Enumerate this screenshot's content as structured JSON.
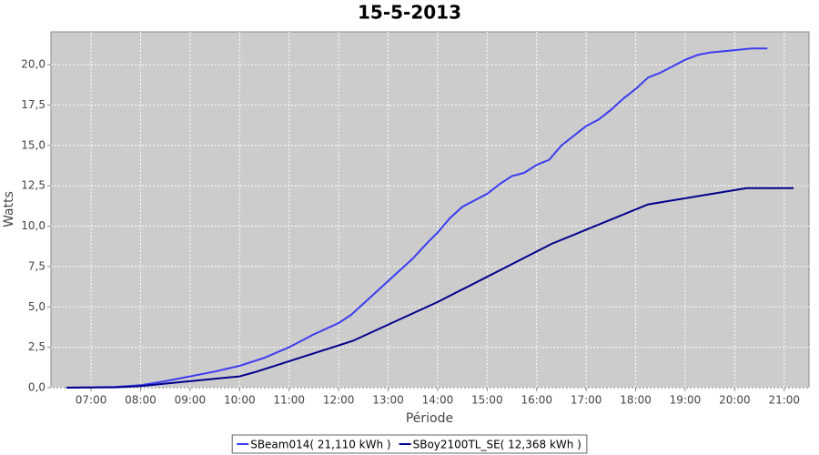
{
  "chart_data": {
    "type": "line",
    "title": "15-5-2013",
    "x_label": "Période",
    "y_label": "Watts",
    "xlim": [
      6.19,
      21.5
    ],
    "ylim": [
      0,
      22.03
    ],
    "xticks": [
      {
        "value": 7,
        "label": "07:00"
      },
      {
        "value": 8,
        "label": "08:00"
      },
      {
        "value": 9,
        "label": "09:00"
      },
      {
        "value": 10,
        "label": "10:00"
      },
      {
        "value": 11,
        "label": "11:00"
      },
      {
        "value": 12,
        "label": "12:00"
      },
      {
        "value": 13,
        "label": "13:00"
      },
      {
        "value": 14,
        "label": "14:00"
      },
      {
        "value": 15,
        "label": "15:00"
      },
      {
        "value": 16,
        "label": "16:00"
      },
      {
        "value": 17,
        "label": "17:00"
      },
      {
        "value": 18,
        "label": "18:00"
      },
      {
        "value": 19,
        "label": "19:00"
      },
      {
        "value": 20,
        "label": "20:00"
      },
      {
        "value": 21,
        "label": "21:00"
      }
    ],
    "yticks": [
      {
        "value": 0,
        "label": "0,0"
      },
      {
        "value": 2.5,
        "label": "2,5"
      },
      {
        "value": 5,
        "label": "5,0"
      },
      {
        "value": 7.5,
        "label": "7,5"
      },
      {
        "value": 10,
        "label": "10,0"
      },
      {
        "value": 12.5,
        "label": "12,5"
      },
      {
        "value": 15,
        "label": "15,0"
      },
      {
        "value": 17.5,
        "label": "17,5"
      },
      {
        "value": 20,
        "label": "20,0"
      }
    ],
    "grid": true,
    "legend": "bottom",
    "series": [
      {
        "name": "SBeam014( 21,110 kWh )",
        "color": "#3c3cf0",
        "x": [
          6.5,
          7.0,
          7.5,
          8.0,
          8.5,
          9.0,
          9.5,
          10.0,
          10.5,
          11.0,
          11.5,
          12.0,
          12.25,
          12.5,
          13.0,
          13.5,
          13.8,
          14.0,
          14.25,
          14.5,
          14.75,
          15.0,
          15.25,
          15.5,
          15.75,
          16.0,
          16.25,
          16.5,
          16.75,
          17.0,
          17.25,
          17.5,
          17.75,
          18.0,
          18.25,
          18.5,
          18.75,
          19.0,
          19.25,
          19.5,
          20.0,
          20.35,
          20.66
        ],
        "values": [
          0,
          0.02,
          0.05,
          0.15,
          0.4,
          0.7,
          1.0,
          1.35,
          1.85,
          2.5,
          3.3,
          4.0,
          4.5,
          5.2,
          6.6,
          8.0,
          9.0,
          9.6,
          10.5,
          11.2,
          11.6,
          12.0,
          12.6,
          13.1,
          13.3,
          13.8,
          14.1,
          15.0,
          15.6,
          16.2,
          16.6,
          17.2,
          17.9,
          18.5,
          19.2,
          19.5,
          19.9,
          20.3,
          20.6,
          20.75,
          20.9,
          21.0,
          21.0
        ]
      },
      {
        "name": "SBoy2100TL_SE( 12,368 kWh )",
        "color": "#00008b",
        "x": [
          6.5,
          7.5,
          8.0,
          9.0,
          10.0,
          10.35,
          12.29,
          14.0,
          16.3,
          18.25,
          20.24,
          21.19
        ],
        "values": [
          0,
          0.02,
          0.1,
          0.4,
          0.7,
          1.0,
          2.9,
          5.3,
          8.9,
          11.35,
          12.35,
          12.35
        ]
      }
    ]
  }
}
